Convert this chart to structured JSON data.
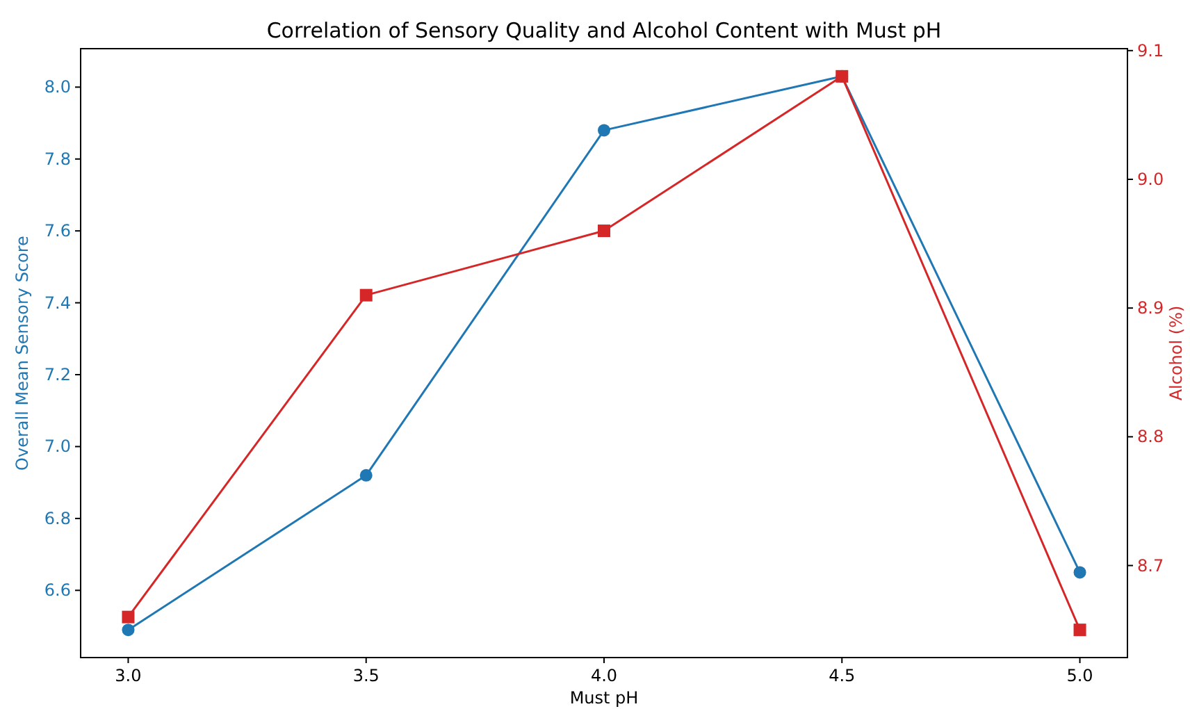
{
  "chart_data": {
    "type": "line",
    "title": "Correlation of Sensory Quality and Alcohol Content with Must pH",
    "xlabel": "Must pH",
    "ylabel": "Overall Mean Sensory Score",
    "y2label": "Alcohol (%)",
    "x": [
      3.0,
      3.5,
      4.0,
      4.5,
      5.0
    ],
    "xlim": [
      2.9,
      5.1
    ],
    "xticks": [
      {
        "value": 3,
        "label": "3.0"
      },
      {
        "value": 3.5,
        "label": "3.5"
      },
      {
        "value": 4,
        "label": "4.0"
      },
      {
        "value": 4.5,
        "label": "4.5"
      },
      {
        "value": 5,
        "label": "5.0"
      }
    ],
    "ylim": [
      6.413,
      8.107
    ],
    "yticks": [
      {
        "value": 6.6,
        "label": "6.6"
      },
      {
        "value": 6.8,
        "label": "6.8"
      },
      {
        "value": 7,
        "label": "7.0"
      },
      {
        "value": 7.2,
        "label": "7.2"
      },
      {
        "value": 7.4,
        "label": "7.4"
      },
      {
        "value": 7.6,
        "label": "7.6"
      },
      {
        "value": 7.8,
        "label": "7.8"
      },
      {
        "value": 8,
        "label": "8.0"
      }
    ],
    "y2lim": [
      8.6285,
      9.1015
    ],
    "y2ticks": [
      {
        "value": 8.7,
        "label": "8.7"
      },
      {
        "value": 8.8,
        "label": "8.8"
      },
      {
        "value": 8.9,
        "label": "8.9"
      },
      {
        "value": 9,
        "label": "9.0"
      },
      {
        "value": 9.1,
        "label": "9.1"
      }
    ],
    "grid": false,
    "line_style": "solid",
    "series": [
      {
        "color": "#1f77b4",
        "marker": "circle",
        "values": [
          6.49,
          6.92,
          7.88,
          8.03,
          6.65
        ]
      },
      {
        "color": "#d62728",
        "marker": "square",
        "axis": "y2",
        "values": [
          8.66,
          8.91,
          8.96,
          9.08,
          8.65
        ]
      }
    ]
  }
}
